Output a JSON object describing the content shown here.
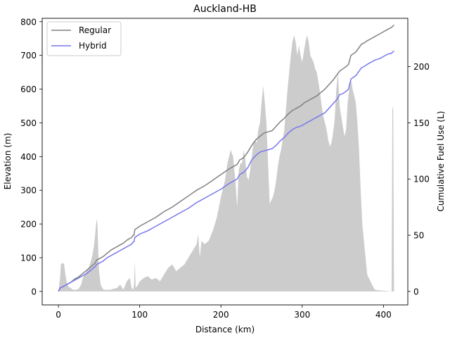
{
  "chart_data": {
    "type": "line",
    "title": "Auckland-HB",
    "xlabel": "Distance (km)",
    "ylabel_left": "Elevation (m)",
    "ylabel_right": "Cumulative Fuel Use (L)",
    "xlim": [
      -20,
      430
    ],
    "ylim_left": [
      -40,
      810
    ],
    "ylim_right": [
      -12,
      243
    ],
    "xticks": [
      0,
      100,
      200,
      300,
      400
    ],
    "yticks_left": [
      0,
      100,
      200,
      300,
      400,
      500,
      600,
      700,
      800
    ],
    "yticks_right": [
      0,
      50,
      100,
      150,
      200
    ],
    "legend": {
      "position": "upper-left",
      "entries": [
        "Regular",
        "Hybrid"
      ]
    },
    "grid": false,
    "elevation": {
      "name": "Elevation",
      "color": "#cccccc",
      "x": [
        0,
        2,
        3,
        5,
        7,
        8,
        10,
        12,
        15,
        18,
        22,
        25,
        28,
        30,
        32,
        35,
        38,
        40,
        42,
        44,
        46,
        47,
        48,
        49,
        50,
        52,
        54,
        56,
        60,
        64,
        68,
        72,
        76,
        80,
        84,
        88,
        90,
        92,
        93,
        94,
        95,
        98,
        100,
        105,
        110,
        115,
        120,
        125,
        130,
        135,
        140,
        145,
        150,
        155,
        160,
        165,
        170,
        172,
        174,
        176,
        180,
        185,
        190,
        195,
        200,
        205,
        208,
        212,
        215,
        218,
        220,
        222,
        224,
        226,
        228,
        230,
        232,
        234,
        236,
        238,
        240,
        242,
        244,
        246,
        248,
        250,
        252,
        254,
        256,
        258,
        260,
        262,
        264,
        266,
        268,
        270,
        272,
        274,
        276,
        278,
        280,
        282,
        284,
        286,
        288,
        290,
        292,
        294,
        296,
        298,
        300,
        302,
        304,
        306,
        308,
        310,
        312,
        314,
        316,
        318,
        320,
        322,
        324,
        326,
        328,
        330,
        332,
        334,
        336,
        338,
        340,
        342,
        344,
        346,
        348,
        350,
        352,
        354,
        356,
        358,
        360,
        362,
        364,
        366,
        368,
        370,
        372,
        374,
        376,
        378,
        380,
        382,
        384,
        386,
        388,
        390,
        395,
        400,
        405,
        410,
        411,
        412,
        413
      ],
      "y": [
        0,
        40,
        80,
        85,
        80,
        60,
        30,
        15,
        10,
        5,
        5,
        8,
        20,
        40,
        50,
        60,
        75,
        90,
        110,
        140,
        190,
        215,
        200,
        120,
        60,
        20,
        10,
        5,
        5,
        5,
        8,
        10,
        20,
        5,
        30,
        40,
        10,
        5,
        20,
        90,
        10,
        20,
        30,
        40,
        45,
        35,
        40,
        30,
        50,
        70,
        80,
        60,
        70,
        80,
        100,
        120,
        140,
        170,
        100,
        150,
        140,
        150,
        180,
        220,
        280,
        330,
        380,
        420,
        400,
        320,
        250,
        360,
        380,
        380,
        420,
        390,
        340,
        330,
        360,
        400,
        440,
        450,
        440,
        480,
        500,
        560,
        610,
        560,
        500,
        380,
        260,
        270,
        280,
        300,
        330,
        370,
        400,
        420,
        450,
        480,
        540,
        600,
        650,
        700,
        740,
        760,
        740,
        700,
        730,
        700,
        680,
        710,
        740,
        760,
        740,
        700,
        690,
        680,
        660,
        650,
        620,
        590,
        550,
        520,
        500,
        480,
        450,
        430,
        440,
        470,
        510,
        600,
        650,
        550,
        520,
        490,
        460,
        480,
        560,
        600,
        630,
        600,
        580,
        560,
        500,
        420,
        300,
        200,
        150,
        100,
        50,
        40,
        30,
        20,
        10,
        5,
        3,
        2,
        1,
        0,
        540,
        550,
        0
      ]
    },
    "series": [
      {
        "name": "Regular",
        "color": "#808080",
        "x": [
          0,
          2,
          5,
          10,
          15,
          20,
          25,
          30,
          35,
          40,
          45,
          47,
          50,
          55,
          60,
          65,
          70,
          75,
          80,
          85,
          90,
          92,
          93,
          94,
          100,
          110,
          120,
          130,
          140,
          150,
          160,
          170,
          175,
          180,
          190,
          200,
          210,
          215,
          220,
          223,
          228,
          233,
          238,
          243,
          248,
          253,
          258,
          263,
          268,
          273,
          278,
          283,
          288,
          293,
          298,
          303,
          308,
          313,
          318,
          323,
          328,
          333,
          338,
          343,
          346,
          350,
          354,
          357,
          360,
          362,
          366,
          370,
          373,
          376,
          380,
          385,
          390,
          395,
          400,
          405,
          410,
          413
        ],
        "y": [
          0,
          3,
          4,
          6,
          8,
          11,
          13,
          16,
          19,
          22,
          25,
          28,
          29,
          31,
          34,
          37,
          39,
          41,
          43,
          46,
          48,
          50,
          50,
          55,
          58,
          62,
          66,
          71,
          75,
          80,
          85,
          90,
          92,
          94,
          99,
          104,
          109,
          111,
          113,
          117,
          119,
          124,
          130,
          135,
          138,
          141,
          142,
          143,
          147,
          151,
          154,
          158,
          161,
          163,
          165,
          168,
          170,
          172,
          174,
          177,
          180,
          184,
          188,
          193,
          196,
          198,
          200,
          202,
          210,
          211,
          213,
          217,
          220,
          221,
          223,
          225,
          227,
          229,
          231,
          233,
          235,
          237
        ]
      },
      {
        "name": "Hybrid",
        "color": "#7777ee",
        "x": [
          0,
          2,
          5,
          10,
          15,
          20,
          25,
          30,
          35,
          40,
          45,
          47,
          50,
          55,
          60,
          65,
          70,
          75,
          80,
          85,
          90,
          92,
          93,
          94,
          100,
          110,
          120,
          130,
          140,
          150,
          160,
          170,
          175,
          180,
          190,
          200,
          210,
          215,
          220,
          223,
          228,
          233,
          238,
          243,
          248,
          253,
          258,
          263,
          268,
          273,
          278,
          283,
          288,
          293,
          298,
          303,
          308,
          313,
          318,
          323,
          328,
          333,
          338,
          343,
          346,
          350,
          354,
          357,
          360,
          362,
          366,
          370,
          373,
          376,
          380,
          385,
          390,
          395,
          400,
          405,
          410,
          413
        ],
        "y": [
          0,
          3,
          4,
          6,
          8,
          10,
          12,
          14,
          16,
          19,
          22,
          24,
          25,
          27,
          30,
          32,
          34,
          36,
          38,
          40,
          42,
          44,
          44,
          48,
          51,
          54,
          58,
          62,
          66,
          70,
          74,
          79,
          81,
          83,
          87,
          91,
          96,
          98,
          100,
          104,
          106,
          110,
          117,
          121,
          124,
          125,
          126,
          127,
          130,
          134,
          137,
          141,
          144,
          146,
          147,
          149,
          151,
          153,
          155,
          157,
          159,
          163,
          167,
          171,
          175,
          176,
          178,
          180,
          189,
          190,
          192,
          196,
          199,
          200,
          202,
          204,
          206,
          207,
          209,
          211,
          212,
          214
        ]
      }
    ]
  }
}
